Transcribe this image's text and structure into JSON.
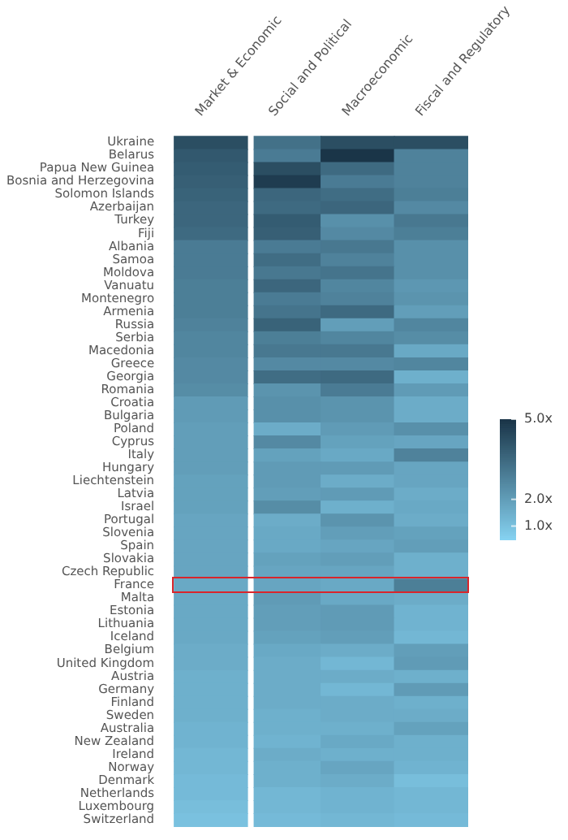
{
  "chart_data": {
    "type": "heatmap",
    "categories": [
      "Market & Economic",
      "Social and Political",
      "Macroeconomic",
      "Fiscal and Regulatory"
    ],
    "y_categories": [
      "Ukraine",
      "Belarus",
      "Papua New Guinea",
      "Bosnia and Herzegovina",
      "Solomon Islands",
      "Azerbaijan",
      "Turkey",
      "Fiji",
      "Albania",
      "Samoa",
      "Moldova",
      "Vanuatu",
      "Montenegro",
      "Armenia",
      "Russia",
      "Serbia",
      "Macedonia",
      "Greece",
      "Georgia",
      "Romania",
      "Croatia",
      "Bulgaria",
      "Poland",
      "Cyprus",
      "Italy",
      "Hungary",
      "Liechtenstein",
      "Latvia",
      "Israel",
      "Portugal",
      "Slovenia",
      "Spain",
      "Slovakia",
      "Czech Republic",
      "France",
      "Malta",
      "Estonia",
      "Lithuania",
      "Iceland",
      "Belgium",
      "United Kingdom",
      "Austria",
      "Germany",
      "Finland",
      "Sweden",
      "Australia",
      "New Zealand",
      "Ireland",
      "Norway",
      "Denmark",
      "Netherlands",
      "Luxembourg",
      "Switzerland"
    ],
    "cells": [
      [
        4.3,
        3.3,
        4.3,
        4.3
      ],
      [
        4.0,
        3.0,
        5.0,
        2.8
      ],
      [
        3.9,
        4.3,
        3.5,
        2.8
      ],
      [
        3.8,
        4.8,
        3.0,
        2.8
      ],
      [
        3.7,
        3.6,
        3.4,
        2.9
      ],
      [
        3.6,
        3.5,
        3.6,
        2.6
      ],
      [
        3.6,
        3.9,
        2.4,
        3.1
      ],
      [
        3.5,
        3.8,
        2.6,
        2.9
      ],
      [
        3.0,
        3.0,
        3.1,
        2.4
      ],
      [
        3.0,
        3.4,
        2.8,
        2.4
      ],
      [
        3.0,
        3.1,
        3.2,
        2.4
      ],
      [
        2.9,
        3.6,
        2.7,
        2.2
      ],
      [
        2.9,
        3.0,
        2.8,
        2.3
      ],
      [
        2.9,
        3.2,
        3.5,
        2.0
      ],
      [
        2.8,
        3.7,
        2.0,
        2.7
      ],
      [
        2.7,
        2.9,
        2.7,
        2.5
      ],
      [
        2.7,
        3.1,
        3.1,
        1.7
      ],
      [
        2.6,
        2.6,
        2.6,
        2.7
      ],
      [
        2.6,
        3.4,
        3.5,
        1.5
      ],
      [
        2.5,
        2.3,
        3.0,
        2.1
      ],
      [
        2.1,
        2.4,
        2.3,
        1.6
      ],
      [
        2.1,
        2.4,
        2.3,
        1.6
      ],
      [
        2.0,
        1.6,
        2.1,
        2.4
      ],
      [
        2.0,
        2.6,
        1.9,
        1.8
      ],
      [
        2.0,
        1.9,
        1.7,
        2.8
      ],
      [
        2.0,
        2.1,
        2.1,
        1.8
      ],
      [
        1.9,
        2.1,
        1.6,
        1.8
      ],
      [
        1.9,
        2.0,
        2.1,
        1.6
      ],
      [
        1.9,
        2.5,
        1.5,
        1.7
      ],
      [
        1.8,
        1.6,
        2.3,
        1.6
      ],
      [
        1.8,
        1.7,
        2.0,
        1.9
      ],
      [
        1.8,
        1.7,
        1.8,
        2.0
      ],
      [
        1.8,
        1.9,
        2.0,
        1.5
      ],
      [
        1.8,
        1.8,
        1.8,
        1.5
      ],
      [
        1.7,
        1.8,
        1.7,
        2.9
      ],
      [
        1.7,
        2.1,
        1.7,
        1.6
      ],
      [
        1.7,
        2.0,
        2.1,
        1.4
      ],
      [
        1.7,
        2.0,
        2.1,
        1.4
      ],
      [
        1.7,
        1.9,
        2.0,
        1.3
      ],
      [
        1.6,
        1.7,
        1.6,
        2.0
      ],
      [
        1.6,
        1.6,
        1.3,
        2.1
      ],
      [
        1.5,
        1.6,
        1.6,
        1.5
      ],
      [
        1.5,
        1.6,
        1.3,
        2.1
      ],
      [
        1.5,
        1.6,
        1.6,
        1.5
      ],
      [
        1.5,
        1.5,
        1.6,
        1.6
      ],
      [
        1.4,
        1.5,
        1.5,
        1.9
      ],
      [
        1.4,
        1.4,
        1.7,
        1.5
      ],
      [
        1.3,
        1.6,
        1.5,
        1.5
      ],
      [
        1.3,
        1.5,
        1.8,
        1.4
      ],
      [
        1.2,
        1.5,
        1.6,
        1.1
      ],
      [
        1.2,
        1.3,
        1.4,
        1.3
      ],
      [
        1.1,
        1.3,
        1.4,
        1.3
      ],
      [
        1.0,
        1.2,
        1.3,
        1.2
      ]
    ],
    "clim": [
      0.5,
      5.0
    ],
    "cticks": [
      {
        "value": 5,
        "label": "5.0x"
      },
      {
        "value": 2,
        "label": "2.0x"
      },
      {
        "value": 1,
        "label": "1.0x"
      }
    ]
  }
}
